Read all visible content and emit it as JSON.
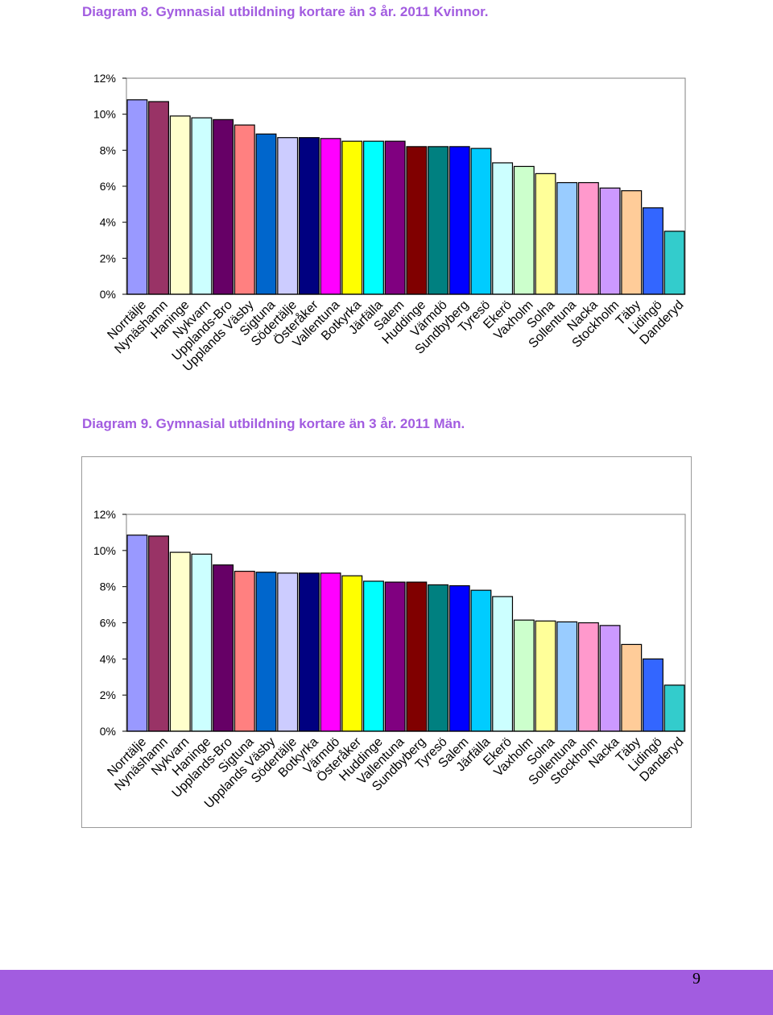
{
  "titles": {
    "chart1": "Diagram 8. Gymnasial utbildning kortare än 3 år. 2011 Kvinnor.",
    "chart2": "Diagram 9. Gymnasial utbildning kortare än 3 år. 2011 Män."
  },
  "page_number": "9",
  "colors": {
    "title": "#a25ce0",
    "footer": "#a25ce0",
    "bars": [
      "#9999ff",
      "#993366",
      "#ffffcc",
      "#ccffff",
      "#660066",
      "#ff8080",
      "#0066cc",
      "#ccccff",
      "#000080",
      "#ff00ff",
      "#ffff00",
      "#00ffff",
      "#800080",
      "#800000",
      "#008080",
      "#0000ff",
      "#00ccff",
      "#ccffff",
      "#ccffcc",
      "#ffff99",
      "#99ccff",
      "#ff99cc",
      "#cc99ff",
      "#ffcc99",
      "#3366ff",
      "#33cccc"
    ]
  },
  "chart_data": [
    {
      "type": "bar",
      "title": "Diagram 8. Gymnasial utbildning kortare än 3 år. 2011 Kvinnor.",
      "categories": [
        "Norrtälje",
        "Nynäshamn",
        "Haninge",
        "Nykvarn",
        "Upplands-Bro",
        "Upplands Väsby",
        "Sigtuna",
        "Södertälje",
        "Österåker",
        "Vallentuna",
        "Botkyrka",
        "Järfälla",
        "Salem",
        "Huddinge",
        "Värmdö",
        "Sundbyberg",
        "Tyresö",
        "Ekerö",
        "Vaxholm",
        "Solna",
        "Sollentuna",
        "Nacka",
        "Stockholm",
        "Täby",
        "Lidingö",
        "Danderyd"
      ],
      "values": [
        10.8,
        10.7,
        9.9,
        9.8,
        9.7,
        9.4,
        8.9,
        8.7,
        8.7,
        8.65,
        8.5,
        8.5,
        8.5,
        8.2,
        8.2,
        8.2,
        8.1,
        7.3,
        7.1,
        6.7,
        6.2,
        6.2,
        5.9,
        5.75,
        4.8,
        3.5
      ],
      "ylim": [
        0,
        12
      ],
      "yticks": [
        "0%",
        "2%",
        "4%",
        "6%",
        "8%",
        "10%",
        "12%"
      ],
      "grid": false,
      "legend": "none"
    },
    {
      "type": "bar",
      "title": "Diagram 9. Gymnasial utbildning kortare än 3 år. 2011 Män.",
      "categories": [
        "Norrtälje",
        "Nynäshamn",
        "Nykvarn",
        "Haninge",
        "Upplands-Bro",
        "Sigtuna",
        "Upplands Väsby",
        "Södertälje",
        "Botkyrka",
        "Värmdö",
        "Österåker",
        "Huddinge",
        "Vallentuna",
        "Sundbyberg",
        "Tyresö",
        "Salem",
        "Järfälla",
        "Ekerö",
        "Vaxholm",
        "Solna",
        "Sollentuna",
        "Stockholm",
        "Nacka",
        "Täby",
        "Lidingö",
        "Danderyd"
      ],
      "values": [
        10.85,
        10.8,
        9.9,
        9.8,
        9.2,
        8.85,
        8.8,
        8.75,
        8.75,
        8.75,
        8.6,
        8.3,
        8.25,
        8.25,
        8.1,
        8.05,
        7.8,
        7.45,
        6.15,
        6.1,
        6.05,
        6.0,
        5.85,
        4.8,
        4.0,
        2.55
      ],
      "ylim": [
        0,
        12
      ],
      "yticks": [
        "0%",
        "2%",
        "4%",
        "6%",
        "8%",
        "10%",
        "12%"
      ],
      "grid": false,
      "legend": "none"
    }
  ]
}
